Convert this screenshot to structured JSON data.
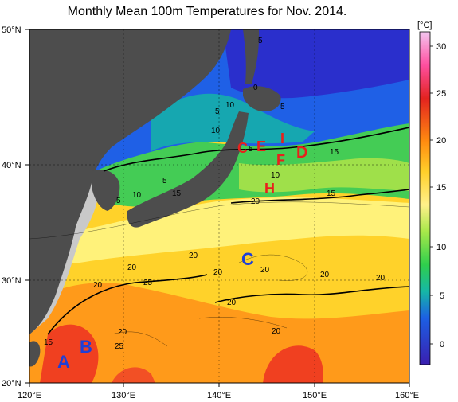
{
  "title": "Monthly Mean 100m Temperatures for Nov. 2014.",
  "colorbar": {
    "unit": "[°C]",
    "ticks": [
      "30",
      "25",
      "20",
      "15",
      "10",
      "5",
      "0"
    ]
  },
  "axes": {
    "lat": [
      "50°N",
      "40°N",
      "30°N",
      "20°N"
    ],
    "lon": [
      "120°E",
      "130°E",
      "140°E",
      "150°E",
      "160°E"
    ]
  },
  "contour_labels": {
    "l0": "0",
    "l1": "5",
    "l2": "10",
    "l3": "5",
    "l4": "10",
    "l5": "5",
    "l6": "10",
    "l7": "5",
    "l8": "15",
    "l9": "10",
    "l10": "5",
    "l11": "15",
    "l12": "5",
    "l13": "10",
    "l14": "15",
    "l15": "20",
    "l16": "15",
    "l17": "20",
    "l18": "20",
    "l19": "20",
    "l20": "25",
    "l21": "20",
    "l22": "20",
    "l23": "20",
    "l24": "20",
    "l25": "20",
    "l26": "20",
    "l27": "25",
    "l28": "20",
    "l29": "5",
    "l30": "15",
    "l31": "5",
    "l32": "10",
    "l33": "5"
  },
  "markers": {
    "A": "A",
    "B": "B",
    "C": "C",
    "D": "D",
    "E": "E",
    "F": "F",
    "H": "H",
    "I": "I",
    "G": "C"
  },
  "colors": {
    "land": "#4d4d4d",
    "shelf": "#c8c8c8",
    "ocean_warm": "#ff7f00",
    "ocean_yellow": "#ffd700",
    "ocean_cold": "#1e3cff",
    "marker_red": "#e8201c",
    "marker_blue": "#1f3fd6"
  }
}
